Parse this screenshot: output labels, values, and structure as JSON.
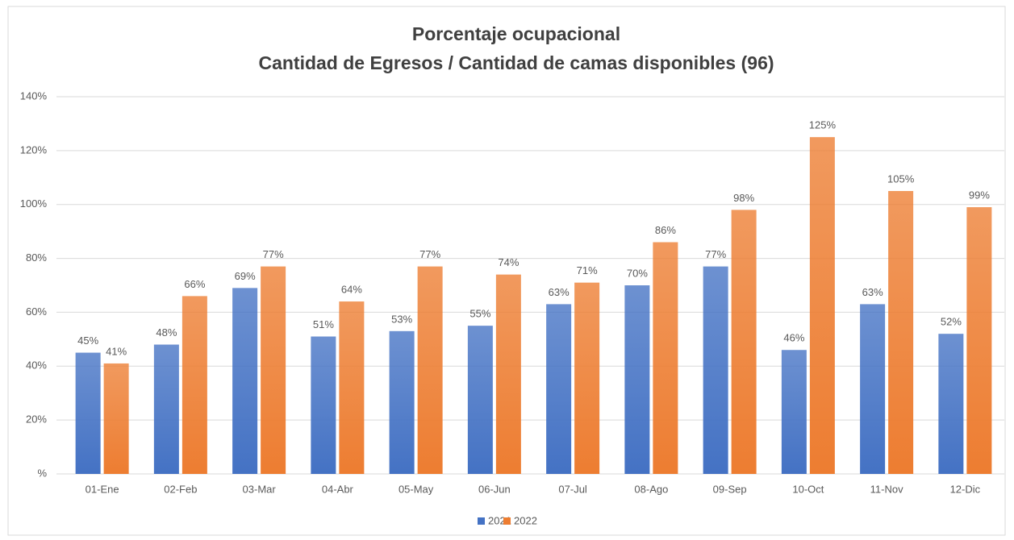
{
  "chart_data": {
    "type": "bar",
    "title": "Porcentaje ocupacional",
    "subtitle": "Cantidad  de Egresos / Cantidad  de camas disponibles  (96)",
    "categories": [
      "01-Ene",
      "02-Feb",
      "03-Mar",
      "04-Abr",
      "05-May",
      "06-Jun",
      "07-Jul",
      "08-Ago",
      "09-Sep",
      "10-Oct",
      "11-Nov",
      "12-Dic"
    ],
    "series": [
      {
        "name": "2021",
        "color": "#4472c4",
        "values": [
          45,
          48,
          69,
          51,
          53,
          55,
          63,
          70,
          77,
          46,
          63,
          52
        ],
        "value_labels": [
          "45%",
          "48%",
          "69%",
          "51%",
          "53%",
          "55%",
          "63%",
          "70%",
          "77%",
          "46%",
          "63%",
          "52%"
        ]
      },
      {
        "name": "2022",
        "color": "#ed7d31",
        "values": [
          41,
          66,
          77,
          64,
          77,
          74,
          71,
          86,
          98,
          125,
          105,
          99
        ],
        "value_labels": [
          "41%",
          "66%",
          "77%",
          "64%",
          "77%",
          "74%",
          "71%",
          "86%",
          "98%",
          "125%",
          "105%",
          "99%"
        ]
      }
    ],
    "ylim": [
      0,
      140
    ],
    "yticks": [
      {
        "value": 0,
        "label": "%"
      },
      {
        "value": 20,
        "label": "20%"
      },
      {
        "value": 40,
        "label": "40%"
      },
      {
        "value": 60,
        "label": "60%"
      },
      {
        "value": 80,
        "label": "80%"
      },
      {
        "value": 100,
        "label": "100%"
      },
      {
        "value": 120,
        "label": "120%"
      },
      {
        "value": 140,
        "label": "140%"
      }
    ],
    "grid": true,
    "legend": "bottom"
  }
}
